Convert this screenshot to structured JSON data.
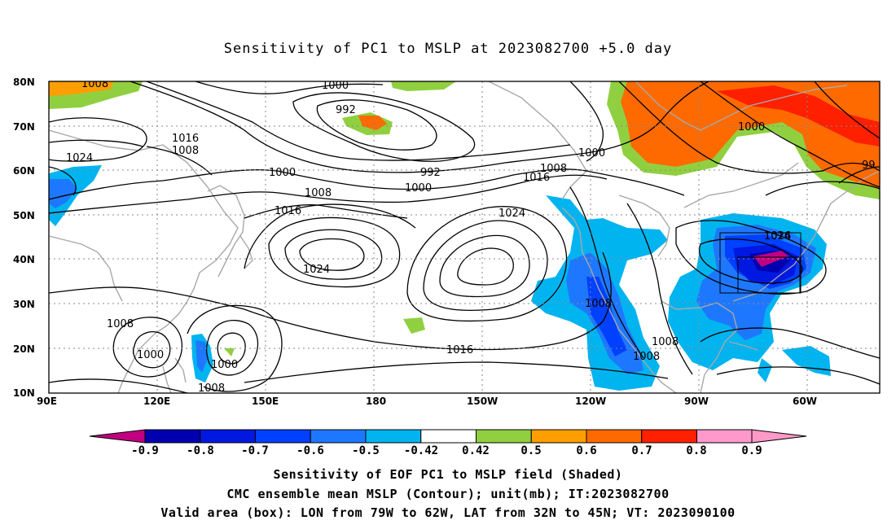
{
  "title": "Sensitivity of PC1 to MSLP at 2023082700 +5.0 day",
  "map": {
    "lat_labels": [
      "80N",
      "70N",
      "60N",
      "50N",
      "40N",
      "30N",
      "20N",
      "10N"
    ],
    "lon_labels": [
      "90E",
      "120E",
      "150E",
      "180",
      "150W",
      "120W",
      "90W",
      "60W"
    ],
    "contour_labels": [
      "1008",
      "1000",
      "992",
      "1016",
      "1008",
      "1024",
      "1000",
      "992",
      "1000",
      "1008",
      "1016",
      "1008",
      "1000",
      "1024",
      "1016",
      "1024",
      "1024",
      "1008",
      "1016",
      "1008",
      "1000",
      "1000",
      "1008",
      "1008",
      "1008",
      "1000",
      "1016",
      "99"
    ],
    "box": {
      "lon_range": [
        "79W",
        "62W"
      ],
      "lat_range": [
        "32N",
        "45N"
      ]
    }
  },
  "colorbar": {
    "labels": [
      "-0.9",
      "-0.8",
      "-0.7",
      "-0.6",
      "-0.5",
      "-0.42",
      "0.42",
      "0.5",
      "0.6",
      "0.7",
      "0.8",
      "0.9"
    ],
    "colors": [
      "#c0007f",
      "#0000b0",
      "#0018e0",
      "#0040ff",
      "#1e78ff",
      "#00b4f0",
      "#ffffff",
      "#90d040",
      "#ff9e00",
      "#ff6a00",
      "#ff2000",
      "#ff99cc",
      "#ff99c8"
    ]
  },
  "captions": [
    "Sensitivity of EOF PC1 to MSLP field (Shaded)",
    "CMC ensemble mean MSLP (Contour); unit(mb); IT:2023082700",
    "Valid area (box): LON from 79W to 62W, LAT from 32N to 45N; VT: 2023090100"
  ]
}
